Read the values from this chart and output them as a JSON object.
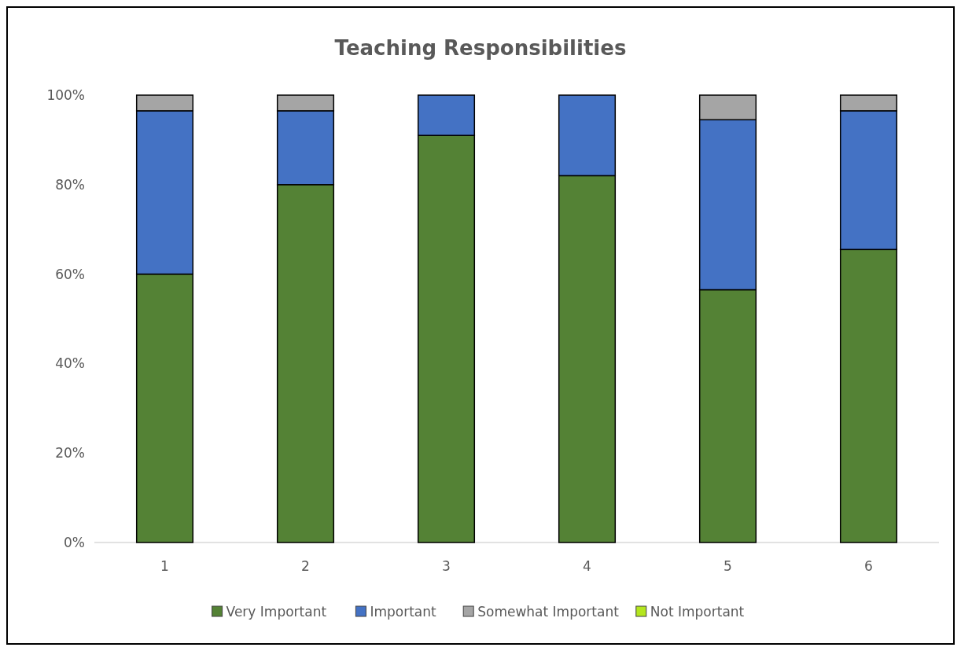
{
  "chart_data": {
    "type": "bar",
    "title": "Teaching Responsibilities",
    "stacked": true,
    "categories": [
      "1",
      "2",
      "3",
      "4",
      "5",
      "6"
    ],
    "series": [
      {
        "name": "Very Important",
        "color": "#548235",
        "values": [
          60,
          80,
          91,
          82,
          56.5,
          65.5
        ]
      },
      {
        "name": "Important",
        "color": "#4472c4",
        "values": [
          36.5,
          16.5,
          9,
          18,
          38,
          31
        ]
      },
      {
        "name": "Somewhat Important",
        "color": "#a5a5a5",
        "values": [
          3.5,
          3.5,
          0,
          0,
          5.5,
          3.5
        ]
      },
      {
        "name": "Not Important",
        "color": "#b4e61e",
        "values": [
          0,
          0,
          0,
          0,
          0,
          0
        ]
      }
    ],
    "ylim": [
      0,
      100
    ],
    "yticks": [
      {
        "value": 0,
        "label": "0%"
      },
      {
        "value": 20,
        "label": "20%"
      },
      {
        "value": 40,
        "label": "40%"
      },
      {
        "value": 60,
        "label": "60%"
      },
      {
        "value": 80,
        "label": "80%"
      },
      {
        "value": 100,
        "label": "100%"
      }
    ],
    "legend": "bottom"
  }
}
